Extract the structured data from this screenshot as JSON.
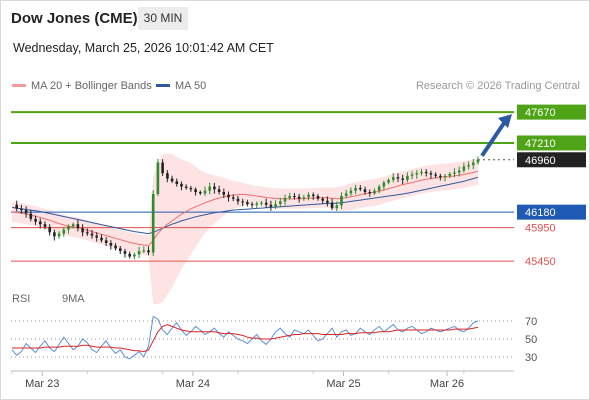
{
  "header": {
    "title": "Dow Jones (CME)",
    "timeframe": "30 MIN",
    "datetime": "Wednesday, March 25, 2026 10:01:42 AM CET"
  },
  "legend": {
    "ma20": "MA 20 + Bollinger Bands",
    "ma50": "MA 50",
    "credit": "Research © 2026 Trading Central",
    "rsi": "RSI",
    "ma9": "9MA"
  },
  "colors": {
    "up": "#2e8b2e",
    "down": "#222222",
    "ma20": "#f07070",
    "ma50": "#2d5aa0",
    "bollinger": "#fde3e3",
    "resistance": "#4ea316",
    "support_blue": "#1f5ab4",
    "support_red": "#e05050",
    "price": "#222222",
    "rsi": "#5b8fd9",
    "rsi_ma": "#dd2222"
  },
  "chart_data": {
    "type": "candlestick",
    "title": "Dow Jones (CME)",
    "timeframe": "30 MIN",
    "ylim": [
      45080,
      47880
    ],
    "x_labels": [
      "Mar 23",
      "Mar 24",
      "Mar 25",
      "Mar 26"
    ],
    "levels": [
      {
        "name": "resistance_2",
        "value": 47670,
        "label": "47670",
        "style": "green"
      },
      {
        "name": "resistance_1",
        "value": 47210,
        "label": "47210",
        "style": "green"
      },
      {
        "name": "last_price",
        "value": 46960,
        "label": "46960",
        "style": "price"
      },
      {
        "name": "pivot",
        "value": 46180,
        "label": "46180",
        "style": "blue"
      },
      {
        "name": "support_1",
        "value": 45950,
        "label": "45950",
        "style": "red"
      },
      {
        "name": "support_2",
        "value": 45450,
        "label": "45450",
        "style": "red"
      }
    ],
    "price_path": [
      46290,
      46230,
      46210,
      46160,
      46080,
      46040,
      46000,
      45960,
      45880,
      45820,
      45860,
      45920,
      45970,
      46000,
      45940,
      45880,
      45860,
      45830,
      45800,
      45760,
      45720,
      45680,
      45640,
      45600,
      45560,
      45520,
      45550,
      45600,
      45610,
      45580,
      46450,
      46920,
      46760,
      46680,
      46640,
      46600,
      46560,
      46540,
      46520,
      46480,
      46460,
      46500,
      46560,
      46520,
      46480,
      46440,
      46400,
      46380,
      46340,
      46330,
      46300,
      46290,
      46310,
      46320,
      46290,
      46260,
      46300,
      46340,
      46390,
      46420,
      46410,
      46380,
      46400,
      46440,
      46420,
      46380,
      46350,
      46320,
      46240,
      46280,
      46420,
      46460,
      46500,
      46540,
      46520,
      46480,
      46460,
      46500,
      46560,
      46620,
      46660,
      46700,
      46680,
      46660,
      46720,
      46740,
      46760,
      46780,
      46760,
      46740,
      46720,
      46700,
      46720,
      46750,
      46770,
      46800,
      46860,
      46880,
      46920,
      46960
    ],
    "ma20": [
      46180,
      46175,
      46165,
      46150,
      46135,
      46120,
      46100,
      46080,
      46060,
      46035,
      46010,
      45990,
      45970,
      45960,
      45950,
      45930,
      45910,
      45890,
      45870,
      45850,
      45830,
      45810,
      45790,
      45770,
      45750,
      45730,
      45715,
      45700,
      45690,
      45680,
      45760,
      45860,
      45940,
      46000,
      46050,
      46100,
      46150,
      46190,
      46230,
      46260,
      46290,
      46320,
      46345,
      46370,
      46390,
      46410,
      46425,
      46435,
      46440,
      46445,
      46440,
      46430,
      46420,
      46410,
      46400,
      46390,
      46385,
      46380,
      46380,
      46380,
      46380,
      46380,
      46380,
      46385,
      46390,
      46395,
      46395,
      46395,
      46385,
      46380,
      46385,
      46395,
      46410,
      46425,
      46440,
      46455,
      46465,
      46475,
      46490,
      46510,
      46530,
      46550,
      46570,
      46590,
      46605,
      46620,
      46640,
      46655,
      46670,
      46680,
      46690,
      46700,
      46705,
      46710,
      46720,
      46730,
      46740,
      46755,
      46770,
      46790
    ],
    "ma50": [
      46250,
      46240,
      46230,
      46220,
      46210,
      46200,
      46190,
      46175,
      46160,
      46145,
      46130,
      46115,
      46100,
      46085,
      46070,
      46055,
      46040,
      46025,
      46010,
      45995,
      45980,
      45965,
      45950,
      45935,
      45920,
      45905,
      45890,
      45880,
      45870,
      45860,
      45880,
      45910,
      45940,
      45970,
      46000,
      46025,
      46050,
      46070,
      46090,
      46110,
      46125,
      46140,
      46155,
      46170,
      46180,
      46190,
      46200,
      46210,
      46215,
      46220,
      46225,
      46230,
      46235,
      46240,
      46245,
      46250,
      46255,
      46260,
      46265,
      46270,
      46275,
      46280,
      46285,
      46290,
      46295,
      46300,
      46305,
      46310,
      46310,
      46315,
      46320,
      46330,
      46340,
      46350,
      46360,
      46370,
      46380,
      46390,
      46400,
      46410,
      46420,
      46430,
      46440,
      46450,
      46460,
      46475,
      46490,
      46505,
      46520,
      46535,
      46550,
      46565,
      46580,
      46595,
      46610,
      46625,
      46640,
      46660,
      46680,
      46700
    ],
    "bollinger_width": [
      150,
      150,
      150,
      150,
      150,
      150,
      150,
      150,
      150,
      150,
      150,
      150,
      150,
      150,
      150,
      150,
      150,
      150,
      150,
      150,
      150,
      150,
      150,
      150,
      150,
      150,
      150,
      150,
      150,
      150,
      950,
      1050,
      1100,
      1050,
      1000,
      900,
      820,
      750,
      680,
      600,
      520,
      450,
      400,
      360,
      320,
      280,
      240,
      210,
      190,
      170,
      160,
      150,
      150,
      150,
      150,
      150,
      150,
      150,
      150,
      150,
      150,
      150,
      150,
      150,
      150,
      150,
      150,
      150,
      160,
      170,
      180,
      190,
      200,
      200,
      200,
      200,
      200,
      200,
      200,
      200,
      200,
      200,
      200,
      200,
      200,
      200,
      200,
      200,
      200,
      200,
      200,
      200,
      200,
      200,
      200,
      200,
      200,
      200,
      200,
      200
    ],
    "rsi": {
      "ticks": [
        70,
        50,
        30
      ],
      "ylim": [
        20,
        80
      ],
      "values": [
        38,
        32,
        36,
        45,
        40,
        35,
        42,
        48,
        40,
        36,
        44,
        52,
        45,
        38,
        42,
        50,
        46,
        38,
        35,
        42,
        48,
        40,
        34,
        38,
        30,
        28,
        32,
        36,
        30,
        42,
        75,
        72,
        60,
        55,
        62,
        68,
        60,
        54,
        58,
        64,
        60,
        55,
        58,
        62,
        56,
        52,
        58,
        54,
        50,
        48,
        45,
        50,
        55,
        48,
        44,
        50,
        58,
        62,
        56,
        52,
        60,
        58,
        56,
        60,
        54,
        48,
        50,
        56,
        62,
        52,
        58,
        60,
        54,
        56,
        62,
        58,
        55,
        60,
        64,
        58,
        62,
        66,
        60,
        58,
        62,
        64,
        60,
        56,
        58,
        62,
        60,
        58,
        60,
        62,
        64,
        60,
        58,
        62,
        68,
        70
      ],
      "ma9": [
        40,
        40,
        40,
        40,
        40,
        40,
        40,
        41,
        41,
        41,
        41,
        42,
        42,
        42,
        42,
        43,
        43,
        42,
        41,
        41,
        41,
        41,
        40,
        40,
        39,
        38,
        37,
        37,
        36,
        38,
        48,
        58,
        64,
        66,
        64,
        62,
        60,
        59,
        58,
        58,
        58,
        58,
        58,
        58,
        57,
        56,
        56,
        56,
        55,
        54,
        52,
        51,
        51,
        50,
        50,
        50,
        51,
        52,
        53,
        54,
        55,
        55,
        56,
        56,
        56,
        56,
        55,
        55,
        55,
        55,
        55,
        56,
        56,
        56,
        57,
        57,
        57,
        57,
        58,
        58,
        58,
        59,
        60,
        60,
        60,
        60,
        60,
        60,
        60,
        60,
        60,
        60,
        60,
        60,
        61,
        61,
        61,
        61,
        62,
        63
      ]
    }
  }
}
